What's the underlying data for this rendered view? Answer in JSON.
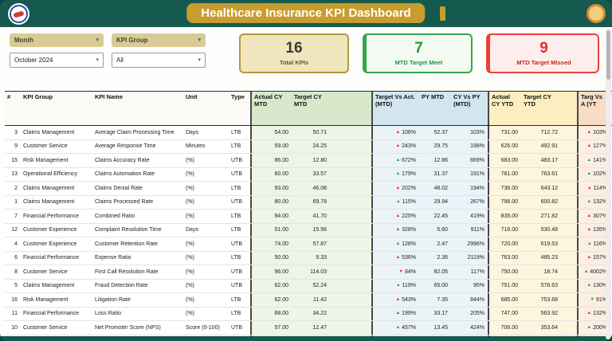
{
  "palette": {
    "teal": "#15594f",
    "gold": "#c79d2e",
    "good": "#1f9e4b",
    "bad": "#e02b20",
    "card_gold": "#b6973b",
    "card_green": "#35a64a",
    "card_red": "#e74339"
  },
  "header": {
    "title": "Healthcare Insurance KPI Dashboard"
  },
  "filters": [
    {
      "label": "Month",
      "value": "October 2024"
    },
    {
      "label": "KPI Group",
      "value": "All"
    }
  ],
  "cards": {
    "total": {
      "value": "16",
      "label": "Total KPIs"
    },
    "meet": {
      "value": "7",
      "label": "MTD Target Meet"
    },
    "missed": {
      "value": "9",
      "label": "MTD Target Missed"
    }
  },
  "table": {
    "columns": {
      "num": "#",
      "group": "KPI Group",
      "name": "KPI Name",
      "unit": "Unit",
      "type": "Type",
      "actual_mtd": "Actual CY MTD",
      "target_mtd": "Target CY MTD",
      "tva_mtd": "Target Vs Act. (MTD)",
      "py_mtd": "PY MTD",
      "cy_py_mtd": "CY Vs PY (MTD)",
      "actual_ytd": "Actual CY YTD",
      "target_ytd": "Target CY YTD",
      "tva_ytd": "Targ Vs A (YT"
    },
    "rows": [
      {
        "num": "3",
        "group": "Claims Management",
        "name": "Average Claim Processing Time",
        "unit": "Days",
        "type": "LTB",
        "actual_mtd": "54.00",
        "target_mtd": "50.71",
        "tva_mtd": {
          "dir": "up",
          "status": "bad",
          "text": "106%"
        },
        "py_mtd": "52.37",
        "cy_py_mtd": "103%",
        "actual_ytd": "731.00",
        "target_ytd": "712.72",
        "tva_ytd": {
          "dir": "up",
          "status": "bad",
          "text": "103%"
        }
      },
      {
        "num": "9",
        "group": "Customer Service",
        "name": "Average Response Time",
        "unit": "Minutes",
        "type": "LTB",
        "actual_mtd": "59.00",
        "target_mtd": "24.25",
        "tva_mtd": {
          "dir": "up",
          "status": "bad",
          "text": "243%"
        },
        "py_mtd": "29.75",
        "cy_py_mtd": "198%",
        "actual_ytd": "626.00",
        "target_ytd": "492.91",
        "tva_ytd": {
          "dir": "up",
          "status": "bad",
          "text": "127%"
        }
      },
      {
        "num": "15",
        "group": "Risk Management",
        "name": "Claims Accuracy Rate",
        "unit": "(%)",
        "type": "UTB",
        "actual_mtd": "86.00",
        "target_mtd": "12.80",
        "tva_mtd": {
          "dir": "up",
          "status": "good",
          "text": "672%"
        },
        "py_mtd": "12.86",
        "cy_py_mtd": "669%",
        "actual_ytd": "683.00",
        "target_ytd": "483.17",
        "tva_ytd": {
          "dir": "up",
          "status": "good",
          "text": "141%"
        }
      },
      {
        "num": "13",
        "group": "Operational Efficiency",
        "name": "Claims Automation Rate",
        "unit": "(%)",
        "type": "UTB",
        "actual_mtd": "60.00",
        "target_mtd": "33.57",
        "tva_mtd": {
          "dir": "up",
          "status": "good",
          "text": "179%"
        },
        "py_mtd": "31.37",
        "cy_py_mtd": "191%",
        "actual_ytd": "781.00",
        "target_ytd": "763.61",
        "tva_ytd": {
          "dir": "up",
          "status": "good",
          "text": "102%"
        }
      },
      {
        "num": "2",
        "group": "Claims Management",
        "name": "Claims Denial Rate",
        "unit": "(%)",
        "type": "LTB",
        "actual_mtd": "93.00",
        "target_mtd": "46.08",
        "tva_mtd": {
          "dir": "up",
          "status": "bad",
          "text": "202%"
        },
        "py_mtd": "48.02",
        "cy_py_mtd": "194%",
        "actual_ytd": "736.00",
        "target_ytd": "643.12",
        "tva_ytd": {
          "dir": "up",
          "status": "bad",
          "text": "114%"
        }
      },
      {
        "num": "1",
        "group": "Claims Management",
        "name": "Claims Processed Rate",
        "unit": "(%)",
        "type": "UTB",
        "actual_mtd": "80.00",
        "target_mtd": "69.78",
        "tva_mtd": {
          "dir": "up",
          "status": "good",
          "text": "115%"
        },
        "py_mtd": "29.94",
        "cy_py_mtd": "267%",
        "actual_ytd": "796.00",
        "target_ytd": "600.82",
        "tva_ytd": {
          "dir": "up",
          "status": "good",
          "text": "132%"
        }
      },
      {
        "num": "7",
        "group": "Financial Performance",
        "name": "Combined Ratio",
        "unit": "(%)",
        "type": "LTB",
        "actual_mtd": "94.00",
        "target_mtd": "41.70",
        "tva_mtd": {
          "dir": "up",
          "status": "bad",
          "text": "225%"
        },
        "py_mtd": "22.45",
        "cy_py_mtd": "419%",
        "actual_ytd": "835.00",
        "target_ytd": "271.82",
        "tva_ytd": {
          "dir": "up",
          "status": "bad",
          "text": "307%"
        }
      },
      {
        "num": "12",
        "group": "Customer Experience",
        "name": "Complaint Resolution Time",
        "unit": "Days",
        "type": "LTB",
        "actual_mtd": "51.00",
        "target_mtd": "15.56",
        "tva_mtd": {
          "dir": "up",
          "status": "bad",
          "text": "328%"
        },
        "py_mtd": "5.60",
        "cy_py_mtd": "911%",
        "actual_ytd": "716.00",
        "target_ytd": "530.48",
        "tva_ytd": {
          "dir": "up",
          "status": "bad",
          "text": "135%"
        }
      },
      {
        "num": "4",
        "group": "Customer Experience",
        "name": "Customer Retention Rate",
        "unit": "(%)",
        "type": "UTB",
        "actual_mtd": "74.00",
        "target_mtd": "57.87",
        "tva_mtd": {
          "dir": "up",
          "status": "good",
          "text": "128%"
        },
        "py_mtd": "2.47",
        "cy_py_mtd": "2996%",
        "actual_ytd": "720.00",
        "target_ytd": "619.53",
        "tva_ytd": {
          "dir": "up",
          "status": "good",
          "text": "116%"
        }
      },
      {
        "num": "6",
        "group": "Financial Performance",
        "name": "Expense Ratio",
        "unit": "(%)",
        "type": "LTB",
        "actual_mtd": "50.00",
        "target_mtd": "9.33",
        "tva_mtd": {
          "dir": "up",
          "status": "bad",
          "text": "536%"
        },
        "py_mtd": "2.36",
        "cy_py_mtd": "2119%",
        "actual_ytd": "763.00",
        "target_ytd": "485.23",
        "tva_ytd": {
          "dir": "up",
          "status": "bad",
          "text": "157%"
        }
      },
      {
        "num": "8",
        "group": "Customer Service",
        "name": "First Call Resolution Rate",
        "unit": "(%)",
        "type": "UTB",
        "actual_mtd": "96.00",
        "target_mtd": "114.03",
        "tva_mtd": {
          "dir": "down",
          "status": "bad",
          "text": "84%"
        },
        "py_mtd": "82.05",
        "cy_py_mtd": "117%",
        "actual_ytd": "750.00",
        "target_ytd": "18.74",
        "tva_ytd": {
          "dir": "up",
          "status": "good",
          "text": "4002%"
        }
      },
      {
        "num": "5",
        "group": "Claims Management",
        "name": "Fraud Detection Rate",
        "unit": "(%)",
        "type": "UTB",
        "actual_mtd": "62.00",
        "target_mtd": "52.24",
        "tva_mtd": {
          "dir": "up",
          "status": "good",
          "text": "119%"
        },
        "py_mtd": "65.00",
        "cy_py_mtd": "95%",
        "actual_ytd": "751.00",
        "target_ytd": "578.63",
        "tva_ytd": {
          "dir": "up",
          "status": "good",
          "text": "130%"
        }
      },
      {
        "num": "16",
        "group": "Risk Management",
        "name": "Litigation Rate",
        "unit": "(%)",
        "type": "LTB",
        "actual_mtd": "62.00",
        "target_mtd": "11.42",
        "tva_mtd": {
          "dir": "up",
          "status": "bad",
          "text": "543%"
        },
        "py_mtd": "7.35",
        "cy_py_mtd": "844%",
        "actual_ytd": "685.00",
        "target_ytd": "753.68",
        "tva_ytd": {
          "dir": "down",
          "status": "good",
          "text": "91%"
        }
      },
      {
        "num": "11",
        "group": "Financial Performance",
        "name": "Loss Ratio",
        "unit": "(%)",
        "type": "LTB",
        "actual_mtd": "68.00",
        "target_mtd": "34.22",
        "tva_mtd": {
          "dir": "up",
          "status": "bad",
          "text": "199%"
        },
        "py_mtd": "33.17",
        "cy_py_mtd": "205%",
        "actual_ytd": "747.00",
        "target_ytd": "563.92",
        "tva_ytd": {
          "dir": "up",
          "status": "bad",
          "text": "132%"
        }
      },
      {
        "num": "10",
        "group": "Customer Service",
        "name": "Net Promoter Score (NPS)",
        "unit": "Score (0-100)",
        "type": "UTB",
        "actual_mtd": "57.00",
        "target_mtd": "12.47",
        "tva_mtd": {
          "dir": "up",
          "status": "good",
          "text": "457%"
        },
        "py_mtd": "13.45",
        "cy_py_mtd": "424%",
        "actual_ytd": "706.00",
        "target_ytd": "353.64",
        "tva_ytd": {
          "dir": "up",
          "status": "good",
          "text": "200%"
        }
      },
      {
        "num": "14",
        "group": "Financial Performance",
        "name": "Premium Collection Rate",
        "unit": "(%)",
        "type": "UTB",
        "actual_mtd": "50.00",
        "target_mtd": "36.79",
        "tva_mtd": {
          "dir": "up",
          "status": "good",
          "text": "136%"
        },
        "py_mtd": "40.07",
        "cy_py_mtd": "125%",
        "actual_ytd": "770.00",
        "target_ytd": "578.95",
        "tva_ytd": {
          "dir": "up",
          "status": "good",
          "text": "133%"
        }
      }
    ]
  }
}
